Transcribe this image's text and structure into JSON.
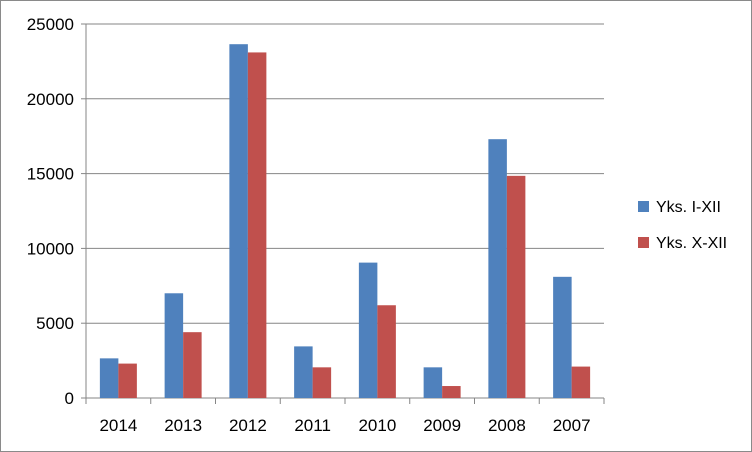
{
  "chart_data": {
    "type": "bar",
    "categories": [
      "2014",
      "2013",
      "2012",
      "2011",
      "2010",
      "2009",
      "2008",
      "2007"
    ],
    "series": [
      {
        "name": "Yks. I-XII",
        "color": "#4f81bd",
        "values": [
          2650,
          7000,
          23650,
          3450,
          9050,
          2050,
          17300,
          8100
        ]
      },
      {
        "name": "Yks. X-XII",
        "color": "#c0504d",
        "values": [
          2300,
          4400,
          23100,
          2050,
          6200,
          800,
          14850,
          2100
        ]
      }
    ],
    "ylim": [
      0,
      25000
    ],
    "yticks": [
      "0",
      "5000",
      "10000",
      "15000",
      "20000",
      "25000"
    ],
    "grid": true,
    "legend_position": "right",
    "gridline_color": "#868686",
    "title": "",
    "xlabel": "",
    "ylabel": ""
  }
}
